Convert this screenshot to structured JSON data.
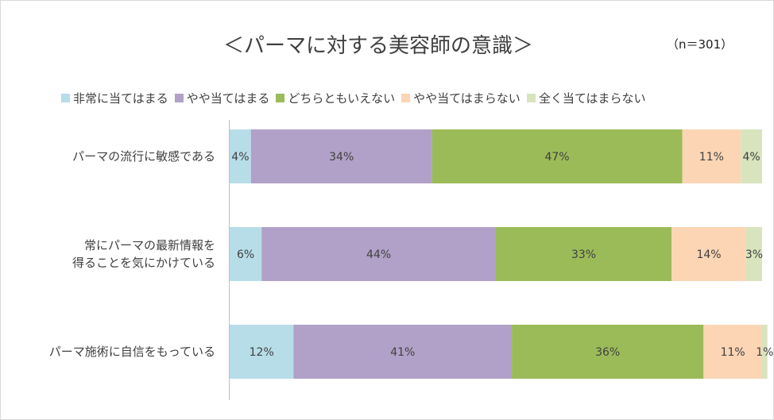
{
  "chart_data": {
    "type": "bar",
    "orientation": "horizontal",
    "stacked": true,
    "percent": true,
    "title": "＜パーマに対する美容師の意識＞",
    "annotation": "（n＝301）",
    "categories": [
      "パーマの流行に敏感である",
      "常にパーマの最新情報を\n得ることを気にかけている",
      "パーマ施術に自信をもっている"
    ],
    "series": [
      {
        "name": "非常に当てはまる",
        "color": "#b7dde8",
        "values": [
          4,
          6,
          12
        ],
        "labels": [
          "4%",
          "6%",
          "12%"
        ]
      },
      {
        "name": "やや当てはまる",
        "color": "#b1a0c7",
        "values": [
          34,
          44,
          41
        ],
        "labels": [
          "34%",
          "44%",
          "41%"
        ]
      },
      {
        "name": "どちらともいえない",
        "color": "#9bbb59",
        "values": [
          47,
          33,
          36
        ],
        "labels": [
          "47%",
          "33%",
          "36%"
        ]
      },
      {
        "name": "やや当てはまらない",
        "color": "#fcd5b5",
        "values": [
          11,
          14,
          11
        ],
        "labels": [
          "11%",
          "14%",
          "11%"
        ]
      },
      {
        "name": "全く当てはまらない",
        "color": "#d7e4bd",
        "values": [
          4,
          3,
          1
        ],
        "labels": [
          "4%",
          "3%",
          "1%"
        ]
      }
    ],
    "xlim": [
      0,
      100
    ],
    "legend_position": "top",
    "grid": false
  }
}
